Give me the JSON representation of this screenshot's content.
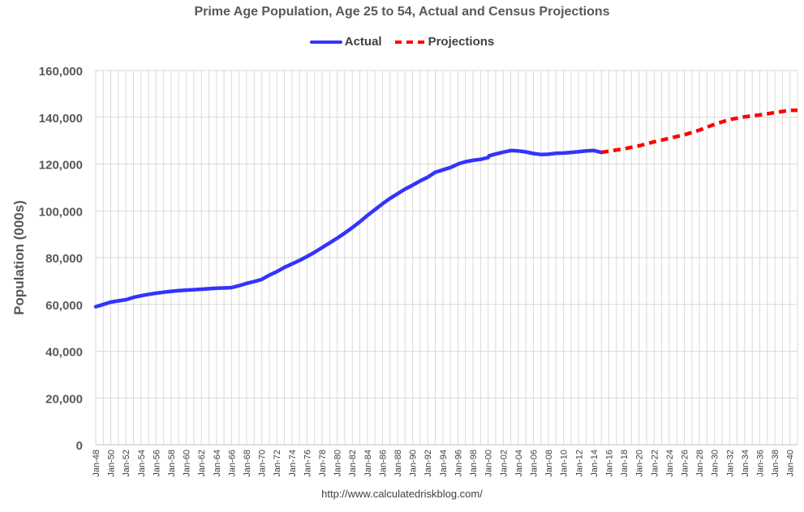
{
  "chart_data": {
    "type": "line",
    "title": "Prime Age Population, Age 25 to 54, Actual and Census Projections",
    "ylabel": "Population (000s)",
    "xlabel": "",
    "footer": "http://www.calculatedriskblog.com/",
    "ylim": [
      0,
      160000
    ],
    "xlim": [
      1948,
      2041
    ],
    "grid": true,
    "legend_position": "top-center",
    "y_ticks": [
      "0",
      "20,000",
      "40,000",
      "60,000",
      "80,000",
      "100,000",
      "120,000",
      "140,000",
      "160,000"
    ],
    "x_ticks": [
      "Jan-48",
      "Jan-50",
      "Jan-52",
      "Jan-54",
      "Jan-56",
      "Jan-58",
      "Jan-60",
      "Jan-62",
      "Jan-64",
      "Jan-66",
      "Jan-68",
      "Jan-70",
      "Jan-72",
      "Jan-74",
      "Jan-76",
      "Jan-78",
      "Jan-80",
      "Jan-82",
      "Jan-84",
      "Jan-86",
      "Jan-88",
      "Jan-90",
      "Jan-92",
      "Jan-94",
      "Jan-96",
      "Jan-98",
      "Jan-00",
      "Jan-02",
      "Jan-04",
      "Jan-06",
      "Jan-08",
      "Jan-10",
      "Jan-12",
      "Jan-14",
      "Jan-16",
      "Jan-18",
      "Jan-20",
      "Jan-22",
      "Jan-24",
      "Jan-26",
      "Jan-28",
      "Jan-30",
      "Jan-32",
      "Jan-34",
      "Jan-36",
      "Jan-38",
      "Jan-40"
    ],
    "x_tick_years": [
      1948,
      1950,
      1952,
      1954,
      1956,
      1958,
      1960,
      1962,
      1964,
      1966,
      1968,
      1970,
      1972,
      1974,
      1976,
      1978,
      1980,
      1982,
      1984,
      1986,
      1988,
      1990,
      1992,
      1994,
      1996,
      1998,
      2000,
      2002,
      2004,
      2006,
      2008,
      2010,
      2012,
      2014,
      2016,
      2018,
      2020,
      2022,
      2024,
      2026,
      2028,
      2030,
      2032,
      2034,
      2036,
      2038,
      2040
    ],
    "series": [
      {
        "name": "Actual",
        "color": "#3333ff",
        "style": "solid",
        "x": [
          1948,
          1949,
          1950,
          1951,
          1952,
          1953,
          1954,
          1955,
          1956,
          1957,
          1958,
          1959,
          1960,
          1961,
          1962,
          1963,
          1964,
          1965,
          1966,
          1967,
          1968,
          1969,
          1970,
          1971,
          1972,
          1973,
          1974,
          1975,
          1976,
          1977,
          1978,
          1979,
          1980,
          1981,
          1982,
          1983,
          1984,
          1985,
          1986,
          1987,
          1988,
          1989,
          1990,
          1991,
          1992,
          1993,
          1994,
          1995,
          1996,
          1997,
          1998,
          1999,
          2000,
          2000.1,
          2001,
          2002,
          2003,
          2004,
          2005,
          2006,
          2007,
          2008,
          2009,
          2010,
          2011,
          2012,
          2013,
          2014,
          2015
        ],
        "y": [
          59000,
          60000,
          61000,
          61500,
          62000,
          63000,
          63700,
          64300,
          64800,
          65200,
          65600,
          65900,
          66100,
          66300,
          66500,
          66700,
          66900,
          67000,
          67200,
          68000,
          69000,
          69800,
          70700,
          72500,
          74000,
          75800,
          77300,
          78800,
          80500,
          82300,
          84300,
          86300,
          88300,
          90500,
          92800,
          95300,
          98000,
          100500,
          103000,
          105300,
          107300,
          109300,
          111000,
          112800,
          114400,
          116500,
          117500,
          118500,
          120000,
          121000,
          121600,
          122000,
          122800,
          123500,
          124300,
          125100,
          125800,
          125600,
          125200,
          124500,
          124100,
          124200,
          124600,
          124700,
          125000,
          125300,
          125600,
          125800,
          125000
        ]
      },
      {
        "name": "Projections",
        "color": "#ff0000",
        "style": "dashed",
        "x": [
          2015,
          2016,
          2018,
          2020,
          2022,
          2024,
          2026,
          2028,
          2030,
          2032,
          2034,
          2036,
          2038,
          2040,
          2041
        ],
        "y": [
          125000,
          125500,
          126500,
          127800,
          129500,
          131000,
          132500,
          134500,
          137000,
          139000,
          140200,
          141000,
          142000,
          143000,
          143000
        ]
      }
    ]
  }
}
